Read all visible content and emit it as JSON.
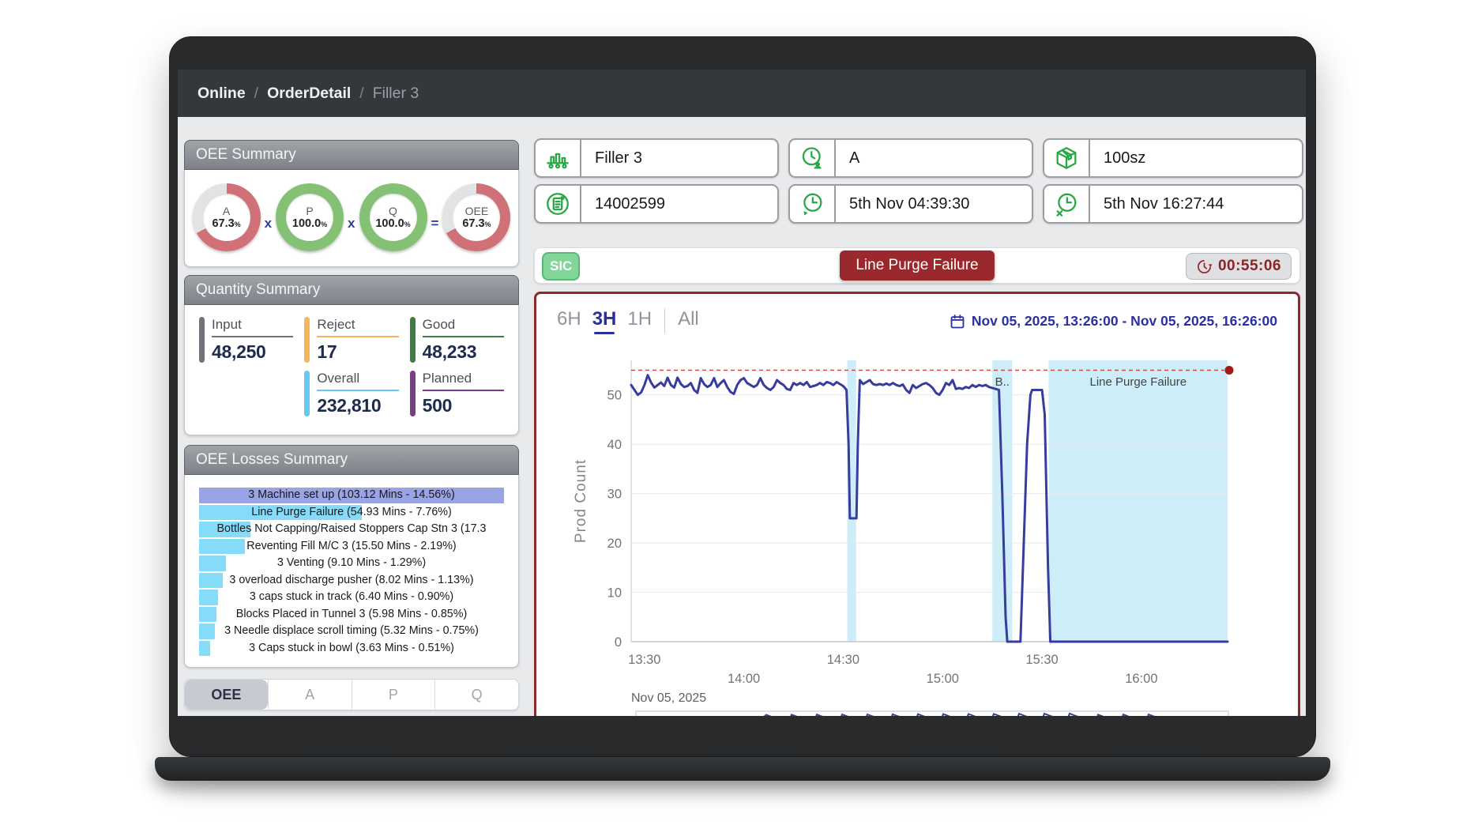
{
  "breadcrumb": {
    "separator": "/",
    "items": [
      {
        "label": "Online",
        "muted": false
      },
      {
        "label": "OrderDetail",
        "muted": false
      },
      {
        "label": "Filler 3",
        "muted": true
      }
    ]
  },
  "oee_summary": {
    "title": "OEE Summary",
    "unit": "%",
    "metrics": [
      {
        "label": "A",
        "value": "67.3",
        "color": "#cf7177",
        "op": "x"
      },
      {
        "label": "P",
        "value": "100.0",
        "color": "#84c175",
        "op": "x"
      },
      {
        "label": "Q",
        "value": "100.0",
        "color": "#84c175",
        "op": "="
      },
      {
        "label": "OEE",
        "value": "67.3",
        "color": "#cf7177",
        "op": ""
      }
    ],
    "track_color": "#e2e3e5"
  },
  "quantity_summary": {
    "title": "Quantity Summary",
    "stats": [
      {
        "label": "Input",
        "value": "48,250",
        "color": "#70747a",
        "col": 1,
        "row": 1
      },
      {
        "label": "Reject",
        "value": "17",
        "color": "#f5b55e",
        "col": 2,
        "row": 1
      },
      {
        "label": "Good",
        "value": "48,233",
        "color": "#3e7d46",
        "col": 3,
        "row": 1
      },
      {
        "label": "Overall",
        "value": "232,810",
        "color": "#66c8f0",
        "col": 2,
        "row": 2
      },
      {
        "label": "Planned",
        "value": "500",
        "color": "#7b3d85",
        "col": 3,
        "row": 2
      }
    ]
  },
  "oee_losses": {
    "title": "OEE Losses Summary",
    "rows": [
      {
        "label": "3 Machine set up  (103.12 Mins - 14.56%)",
        "pct": 100,
        "color": "#9aa3e3"
      },
      {
        "label": "Line Purge Failure  (54.93 Mins - 7.76%)",
        "pct": 53.3,
        "color": "#86dcf8"
      },
      {
        "label": "Bottles Not Capping/Raised Stoppers Cap Stn 3  (17.3",
        "pct": 16.8,
        "color": "#86dcf8"
      },
      {
        "label": "Reventing Fill M/C 3  (15.50 Mins - 2.19%)",
        "pct": 15.0,
        "color": "#86dcf8"
      },
      {
        "label": "3 Venting  (9.10 Mins - 1.29%)",
        "pct": 8.8,
        "color": "#86dcf8"
      },
      {
        "label": "3 overload discharge pusher  (8.02 Mins - 1.13%)",
        "pct": 7.8,
        "color": "#86dcf8"
      },
      {
        "label": "3 caps stuck in track  (6.40 Mins - 0.90%)",
        "pct": 6.2,
        "color": "#86dcf8"
      },
      {
        "label": "Blocks Placed in Tunnel 3  (5.98 Mins - 0.85%)",
        "pct": 5.8,
        "color": "#86dcf8"
      },
      {
        "label": "3 Needle displace scroll timing  (5.32 Mins - 0.75%)",
        "pct": 5.2,
        "color": "#86dcf8"
      },
      {
        "label": "3 Caps stuck in bowl  (3.63 Mins - 0.51%)",
        "pct": 3.5,
        "color": "#86dcf8"
      }
    ]
  },
  "tabs": [
    {
      "label": "OEE",
      "active": true
    },
    {
      "label": "A",
      "active": false
    },
    {
      "label": "P",
      "active": false
    },
    {
      "label": "Q",
      "active": false
    }
  ],
  "fields": [
    {
      "icon": "production-line",
      "value": "Filler 3"
    },
    {
      "icon": "shift-clock",
      "value": "A"
    },
    {
      "icon": "package-box",
      "value": "100sz"
    },
    {
      "icon": "order-document",
      "value": "14002599"
    },
    {
      "icon": "clock-start",
      "value": "5th Nov 04:39:30"
    },
    {
      "icon": "clock-end",
      "value": "5th Nov 16:27:44"
    }
  ],
  "status_bar": {
    "sic": "SIC",
    "alarm": "Line Purge Failure",
    "timer": "00:55:06"
  },
  "chart_data": {
    "type": "line",
    "ylabel": "Prod Count",
    "range_tabs": [
      "6H",
      "3H",
      "1H",
      "All"
    ],
    "active_range": "3H",
    "date_range": "Nov 05, 2025, 13:26:00 - Nov 05, 2025, 16:26:00",
    "x_date_label": "Nov 05, 2025",
    "x_start_min": 0,
    "x_end_min": 180,
    "ylim": [
      0,
      57
    ],
    "threshold": 55,
    "threshold_color": "#d14b47",
    "band_color": "#cdeef9",
    "grid": true,
    "legend": "none",
    "y_ticks": [
      0,
      10,
      20,
      30,
      40,
      50
    ],
    "x_ticks": [
      {
        "t": 4,
        "label": "13:30",
        "row": 0
      },
      {
        "t": 34,
        "label": "14:00",
        "row": 1
      },
      {
        "t": 64,
        "label": "14:30",
        "row": 0
      },
      {
        "t": 94,
        "label": "15:00",
        "row": 1
      },
      {
        "t": 124,
        "label": "15:30",
        "row": 0
      },
      {
        "t": 154,
        "label": "16:00",
        "row": 1
      }
    ],
    "bands": [
      {
        "from": 65.2,
        "to": 67.9,
        "label": ""
      },
      {
        "from": 109,
        "to": 115,
        "label": "B.."
      },
      {
        "from": 126,
        "to": 180,
        "label": "Line Purge Failure"
      }
    ],
    "series": [
      {
        "name": "Prod Count",
        "color": "#383c9d",
        "points": [
          [
            0,
            52
          ],
          [
            1,
            51
          ],
          [
            2,
            50
          ],
          [
            3,
            50.5
          ],
          [
            4,
            52
          ],
          [
            5,
            54
          ],
          [
            6,
            52.5
          ],
          [
            7,
            51.5
          ],
          [
            8,
            52
          ],
          [
            9,
            52.5
          ],
          [
            10,
            51.8
          ],
          [
            11,
            53.5
          ],
          [
            12,
            52
          ],
          [
            13,
            51.5
          ],
          [
            14,
            53.5
          ],
          [
            15,
            52.2
          ],
          [
            16,
            51.6
          ],
          [
            17,
            51.8
          ],
          [
            18,
            52.4
          ],
          [
            19,
            51
          ],
          [
            20,
            50.4
          ],
          [
            21,
            53.4
          ],
          [
            22,
            52.2
          ],
          [
            23,
            51.6
          ],
          [
            24,
            52
          ],
          [
            25,
            53.4
          ],
          [
            26,
            51.6
          ],
          [
            27,
            52.4
          ],
          [
            28,
            53
          ],
          [
            29,
            51.6
          ],
          [
            30,
            50.6
          ],
          [
            31,
            50.2
          ],
          [
            32,
            52
          ],
          [
            33,
            53
          ],
          [
            34,
            53.4
          ],
          [
            35,
            52.4
          ],
          [
            36,
            52
          ],
          [
            37,
            51.6
          ],
          [
            38,
            52
          ],
          [
            39,
            53.4
          ],
          [
            40,
            52
          ],
          [
            41,
            51.4
          ],
          [
            42,
            51
          ],
          [
            43,
            51.6
          ],
          [
            44,
            53
          ],
          [
            45,
            52.4
          ],
          [
            46,
            52
          ],
          [
            47,
            51.2
          ],
          [
            48,
            51
          ],
          [
            49,
            52.4
          ],
          [
            50,
            52
          ],
          [
            51,
            52.4
          ],
          [
            52,
            52
          ],
          [
            53,
            52.6
          ],
          [
            54,
            51.6
          ],
          [
            55,
            51.8
          ],
          [
            56,
            52
          ],
          [
            57,
            52.4
          ],
          [
            58,
            52
          ],
          [
            59,
            52.6
          ],
          [
            60,
            52.4
          ],
          [
            61,
            52
          ],
          [
            62,
            52.6
          ],
          [
            63,
            52.2
          ],
          [
            64,
            51.8
          ],
          [
            65,
            51
          ],
          [
            65.6,
            40
          ],
          [
            66,
            25
          ],
          [
            68,
            25
          ],
          [
            68.4,
            40
          ],
          [
            69,
            53
          ],
          [
            70,
            52.2
          ],
          [
            71,
            52.6
          ],
          [
            72,
            53
          ],
          [
            73,
            52.2
          ],
          [
            74,
            52
          ],
          [
            75,
            52.2
          ],
          [
            76,
            52
          ],
          [
            77,
            52.3
          ],
          [
            78,
            52
          ],
          [
            79,
            52.4
          ],
          [
            80,
            52
          ],
          [
            81,
            51.8
          ],
          [
            82,
            52.1
          ],
          [
            83,
            51
          ],
          [
            84,
            50.4
          ],
          [
            85,
            52
          ],
          [
            86,
            51.4
          ],
          [
            87,
            51.8
          ],
          [
            88,
            52.2
          ],
          [
            89,
            52.4
          ],
          [
            90,
            52
          ],
          [
            91,
            51.4
          ],
          [
            92,
            50.4
          ],
          [
            93,
            50
          ],
          [
            94,
            51
          ],
          [
            95,
            52.4
          ],
          [
            96,
            52
          ],
          [
            97,
            53
          ],
          [
            98,
            51.2
          ],
          [
            99,
            51.4
          ],
          [
            100,
            51.2
          ],
          [
            101,
            51.6
          ],
          [
            102,
            51.4
          ],
          [
            103,
            52
          ],
          [
            104,
            51.6
          ],
          [
            105,
            52
          ],
          [
            106,
            51.8
          ],
          [
            107,
            52
          ],
          [
            108,
            51.6
          ],
          [
            109,
            51.4
          ],
          [
            110,
            51.2
          ],
          [
            111,
            51
          ],
          [
            112,
            30
          ],
          [
            113,
            5
          ],
          [
            113.5,
            0
          ],
          [
            117.5,
            0
          ],
          [
            118.5,
            20
          ],
          [
            119.5,
            40
          ],
          [
            120.5,
            50
          ],
          [
            121,
            51
          ],
          [
            124,
            51
          ],
          [
            124.8,
            46
          ],
          [
            125.8,
            15
          ],
          [
            126.5,
            0
          ],
          [
            180,
            0
          ]
        ]
      }
    ]
  }
}
